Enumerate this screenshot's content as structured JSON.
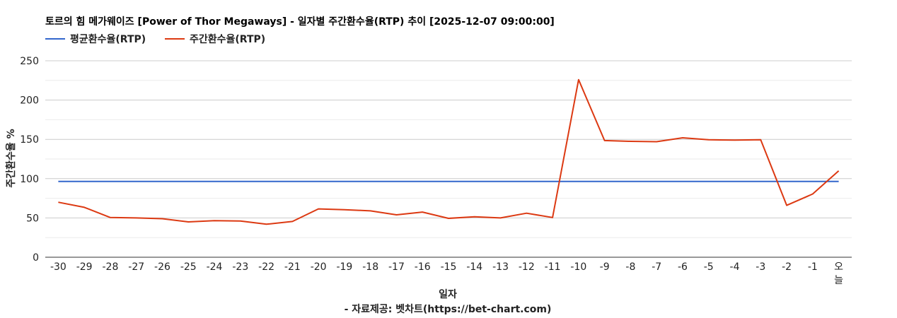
{
  "chart_data": {
    "type": "line",
    "title": "토르의 힘 메가웨이즈 [Power of Thor Megaways] - 일자별 주간환수율(RTP) 추이 [2025-12-07 09:00:00]",
    "xlabel": "일자",
    "ylabel": "주간환수율 %",
    "footer": "- 자료제공: 벳차트(https://bet-chart.com)",
    "ylim": [
      0,
      250
    ],
    "yticks": [
      0,
      50,
      100,
      150,
      200,
      250
    ],
    "grid": true,
    "legend_position": "top-left",
    "categories": [
      "-30",
      "-29",
      "-28",
      "-27",
      "-26",
      "-25",
      "-24",
      "-23",
      "-22",
      "-21",
      "-20",
      "-19",
      "-18",
      "-17",
      "-16",
      "-15",
      "-14",
      "-13",
      "-12",
      "-11",
      "-10",
      "-9",
      "-8",
      "-7",
      "-6",
      "-5",
      "-4",
      "-3",
      "-2",
      "-1",
      "오늘"
    ],
    "series": [
      {
        "name": "평균환수율(RTP)",
        "color": "#3366cc",
        "values": [
          96.5,
          96.5,
          96.5,
          96.5,
          96.5,
          96.5,
          96.5,
          96.5,
          96.5,
          96.5,
          96.5,
          96.5,
          96.5,
          96.5,
          96.5,
          96.5,
          96.5,
          96.5,
          96.5,
          96.5,
          96.5,
          96.5,
          96.5,
          96.5,
          96.5,
          96.5,
          96.5,
          96.5,
          96.5,
          96.5,
          96.5
        ]
      },
      {
        "name": "주간환수율(RTP)",
        "color": "#dc3912",
        "values": [
          70,
          63.5,
          50.5,
          50,
          49,
          45,
          46.5,
          46,
          42,
          45.5,
          61.5,
          60.5,
          59,
          54,
          57.5,
          49.5,
          51.5,
          50,
          56,
          50.5,
          226,
          148.5,
          147.5,
          147,
          152,
          149.5,
          149,
          149.5,
          66,
          80.5,
          110
        ]
      }
    ]
  }
}
